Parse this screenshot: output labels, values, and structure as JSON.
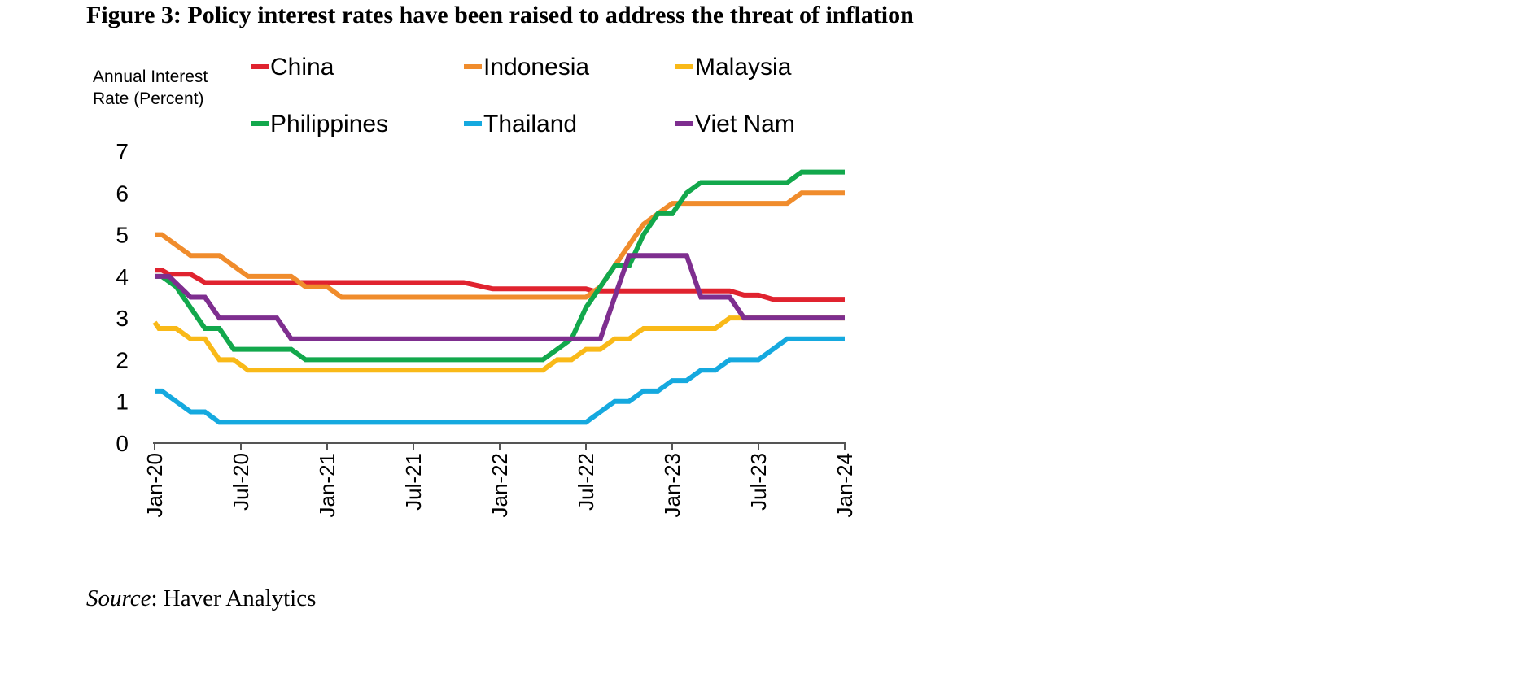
{
  "figure": {
    "title": "Figure 3: Policy interest rates have been raised to address the threat of inflation",
    "source_label": "Source",
    "source_text": ": Haver Analytics"
  },
  "chart_data": {
    "type": "line",
    "title": "Figure 3: Policy interest rates have been raised to address the threat of inflation",
    "ylabel": "Annual Interest Rate (Percent)",
    "ylabel_lines": [
      "Annual Interest",
      "Rate (Percent)"
    ],
    "xlabel": "",
    "ylim": [
      0,
      7
    ],
    "yticks": [
      0,
      1,
      2,
      3,
      4,
      5,
      6,
      7
    ],
    "xlim": [
      0,
      48
    ],
    "x_unit": "months since Jan-20",
    "xticks": [
      {
        "x": 0,
        "label": "Jan-20"
      },
      {
        "x": 6,
        "label": "Jul-20"
      },
      {
        "x": 12,
        "label": "Jan-21"
      },
      {
        "x": 18,
        "label": "Jul-21"
      },
      {
        "x": 24,
        "label": "Jan-22"
      },
      {
        "x": 30,
        "label": "Jul-22"
      },
      {
        "x": 36,
        "label": "Jan-23"
      },
      {
        "x": 42,
        "label": "Jul-23"
      },
      {
        "x": 48,
        "label": "Jan-24"
      }
    ],
    "grid": false,
    "legend_position": "top",
    "series": [
      {
        "name": "China",
        "color": "#E0232F",
        "points": [
          [
            0,
            4.15
          ],
          [
            0.5,
            4.15
          ],
          [
            1,
            4.05
          ],
          [
            2.5,
            4.05
          ],
          [
            3.5,
            3.85
          ],
          [
            21.5,
            3.85
          ],
          [
            23.5,
            3.7
          ],
          [
            30,
            3.7
          ],
          [
            30.5,
            3.65
          ],
          [
            40,
            3.65
          ],
          [
            41,
            3.55
          ],
          [
            42,
            3.55
          ],
          [
            43,
            3.45
          ],
          [
            48,
            3.45
          ]
        ]
      },
      {
        "name": "Indonesia",
        "color": "#F08C2C",
        "points": [
          [
            0,
            5
          ],
          [
            0.5,
            5
          ],
          [
            2.5,
            4.5
          ],
          [
            4.5,
            4.5
          ],
          [
            6.5,
            4
          ],
          [
            9.5,
            4
          ],
          [
            10.5,
            3.75
          ],
          [
            12,
            3.75
          ],
          [
            13,
            3.5
          ],
          [
            30,
            3.5
          ],
          [
            31,
            3.75
          ],
          [
            32,
            4.25
          ],
          [
            33,
            4.75
          ],
          [
            34,
            5.25
          ],
          [
            35,
            5.5
          ],
          [
            36,
            5.75
          ],
          [
            44,
            5.75
          ],
          [
            45,
            6
          ],
          [
            48,
            6
          ]
        ]
      },
      {
        "name": "Malaysia",
        "color": "#F9B918",
        "points": [
          [
            0,
            2.9
          ],
          [
            0.3,
            2.75
          ],
          [
            1.5,
            2.75
          ],
          [
            2.5,
            2.5
          ],
          [
            3.5,
            2.5
          ],
          [
            4.5,
            2
          ],
          [
            5.5,
            2
          ],
          [
            6.5,
            1.75
          ],
          [
            27,
            1.75
          ],
          [
            28,
            2
          ],
          [
            29,
            2
          ],
          [
            30,
            2.25
          ],
          [
            31,
            2.25
          ],
          [
            32,
            2.5
          ],
          [
            33,
            2.5
          ],
          [
            34,
            2.75
          ],
          [
            39,
            2.75
          ],
          [
            40,
            3
          ],
          [
            48,
            3
          ]
        ]
      },
      {
        "name": "Philippines",
        "color": "#12A84C",
        "points": [
          [
            0,
            4
          ],
          [
            0.5,
            4
          ],
          [
            1.5,
            3.75
          ],
          [
            3.5,
            2.75
          ],
          [
            4.5,
            2.75
          ],
          [
            5.5,
            2.25
          ],
          [
            9.5,
            2.25
          ],
          [
            10.5,
            2
          ],
          [
            27,
            2
          ],
          [
            28,
            2.25
          ],
          [
            29,
            2.5
          ],
          [
            30,
            3.25
          ],
          [
            31,
            3.75
          ],
          [
            32,
            4.25
          ],
          [
            33,
            4.25
          ],
          [
            34,
            5
          ],
          [
            35,
            5.5
          ],
          [
            36,
            5.5
          ],
          [
            37,
            6
          ],
          [
            38,
            6.25
          ],
          [
            44,
            6.25
          ],
          [
            45,
            6.5
          ],
          [
            48,
            6.5
          ]
        ]
      },
      {
        "name": "Thailand",
        "color": "#15A9DF",
        "points": [
          [
            0,
            1.25
          ],
          [
            0.5,
            1.25
          ],
          [
            2.5,
            0.75
          ],
          [
            3.5,
            0.75
          ],
          [
            4.5,
            0.5
          ],
          [
            30,
            0.5
          ],
          [
            31,
            0.75
          ],
          [
            32,
            1
          ],
          [
            33,
            1
          ],
          [
            34,
            1.25
          ],
          [
            35,
            1.25
          ],
          [
            36,
            1.5
          ],
          [
            37,
            1.5
          ],
          [
            38,
            1.75
          ],
          [
            39,
            1.75
          ],
          [
            40,
            2
          ],
          [
            42,
            2
          ],
          [
            43,
            2.25
          ],
          [
            44,
            2.5
          ],
          [
            48,
            2.5
          ]
        ]
      },
      {
        "name": "Viet Nam",
        "color": "#7E2E8F",
        "points": [
          [
            0,
            4
          ],
          [
            1,
            4
          ],
          [
            2.5,
            3.5
          ],
          [
            3.5,
            3.5
          ],
          [
            4.5,
            3
          ],
          [
            8.5,
            3
          ],
          [
            9.5,
            2.5
          ],
          [
            31,
            2.5
          ],
          [
            32,
            3.5
          ],
          [
            33,
            4.5
          ],
          [
            37,
            4.5
          ],
          [
            38,
            3.5
          ],
          [
            40,
            3.5
          ],
          [
            41,
            3
          ],
          [
            48,
            3
          ]
        ]
      }
    ]
  }
}
